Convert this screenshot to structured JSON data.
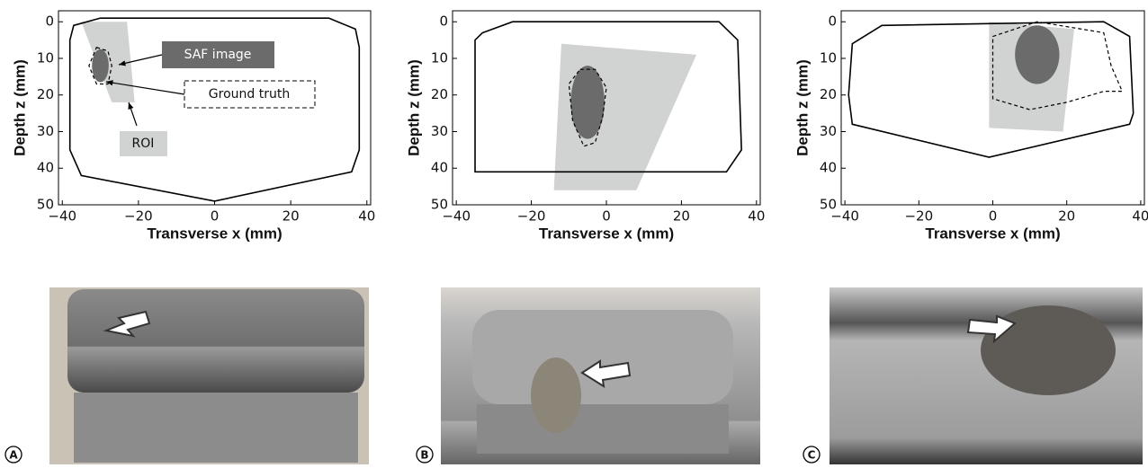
{
  "panels": [
    {
      "label": "A",
      "xlabel": "Transverse x (mm)",
      "ylabel": "Depth z (mm)",
      "xlim": [
        -41,
        41
      ],
      "ylim": [
        -3,
        50
      ],
      "xticks": [
        {
          "value": -40,
          "label": "−40"
        },
        {
          "value": -20,
          "label": "−20"
        },
        0,
        20,
        40
      ],
      "yticks": [
        0,
        10,
        20,
        30,
        40,
        50
      ],
      "annotations": [
        "SAF image",
        "Ground truth",
        "ROI"
      ]
    },
    {
      "label": "B",
      "xlabel": "Transverse x (mm)",
      "ylabel": "Depth z (mm)",
      "xlim": [
        -41,
        41
      ],
      "ylim": [
        -3,
        50
      ],
      "xticks": [
        {
          "value": -40,
          "label": "−40"
        },
        {
          "value": -20,
          "label": "−20"
        },
        0,
        20,
        40
      ],
      "yticks": [
        0,
        10,
        20,
        30,
        40,
        50
      ]
    },
    {
      "label": "C",
      "xlabel": "Transverse x (mm)",
      "ylabel": "Depth z (mm)",
      "xlim": [
        -41,
        41
      ],
      "ylim": [
        -3,
        50
      ],
      "xticks": [
        {
          "value": -40,
          "label": "−40"
        },
        {
          "value": -20,
          "label": "−20"
        },
        0,
        20,
        40
      ],
      "yticks": [
        0,
        10,
        20,
        30,
        40,
        50
      ]
    }
  ]
}
